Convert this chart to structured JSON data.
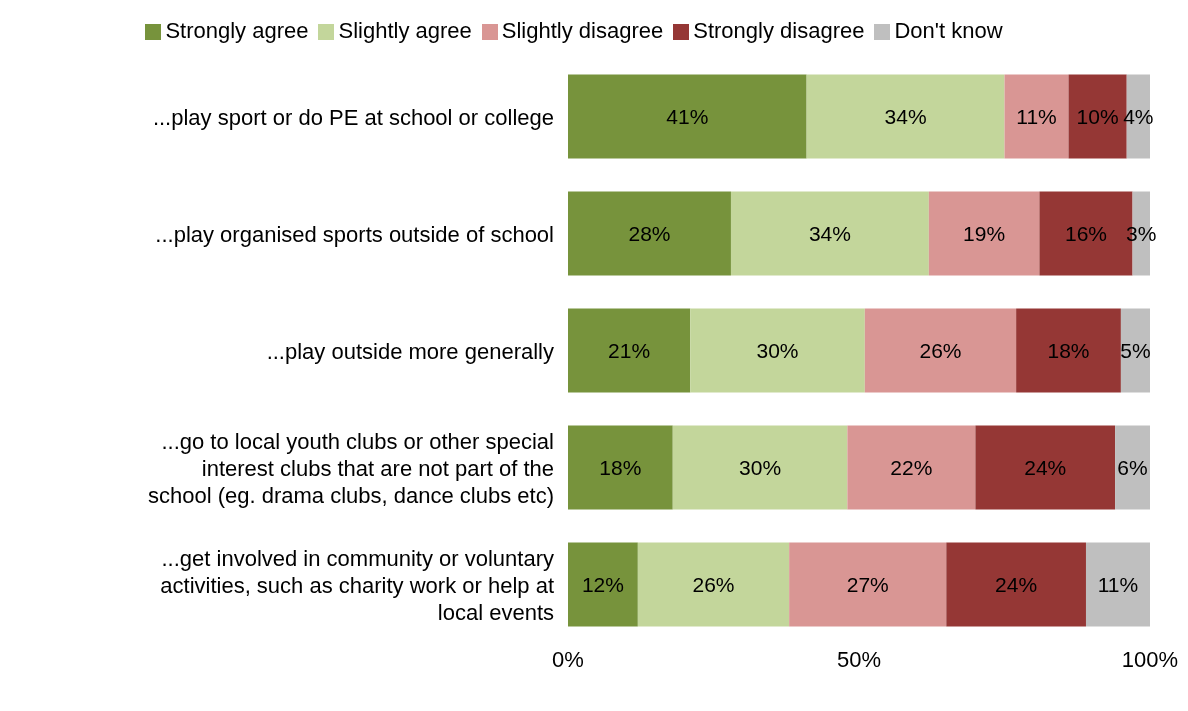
{
  "chart_data": {
    "type": "bar",
    "orientation": "horizontal",
    "stacked": true,
    "legend": "top",
    "grid": false,
    "categories": [
      "...play sport or do PE at school or college",
      "...play organised sports outside of school",
      "...play outside more generally",
      "...go to local youth clubs or other special interest clubs that are not part of the school (eg. drama clubs, dance clubs etc)",
      "...get involved  in community or voluntary activities, such as charity work or help at local events"
    ],
    "xlim": [
      0,
      100
    ],
    "xticks": [
      {
        "value": 0,
        "label": "0%"
      },
      {
        "value": 50,
        "label": "50%"
      },
      {
        "value": 100,
        "label": "100%"
      }
    ],
    "series": [
      {
        "name": "Strongly agree",
        "color": "#77933c",
        "values": [
          41,
          28,
          21,
          18,
          12
        ],
        "value_labels": [
          "41%",
          "28%",
          "21%",
          "18%",
          "12%"
        ]
      },
      {
        "name": "Slightly agree",
        "color": "#c3d69b",
        "values": [
          34,
          34,
          30,
          30,
          26
        ],
        "value_labels": [
          "34%",
          "34%",
          "30%",
          "30%",
          "26%"
        ]
      },
      {
        "name": "Slightly disagree",
        "color": "#d99694",
        "values": [
          11,
          19,
          26,
          22,
          27
        ],
        "value_labels": [
          "11%",
          "19%",
          "26%",
          "22%",
          "27%"
        ]
      },
      {
        "name": "Strongly disagree",
        "color": "#953735",
        "values": [
          10,
          16,
          18,
          24,
          24
        ],
        "value_labels": [
          "10%",
          "16%",
          "18%",
          "24%",
          "24%"
        ]
      },
      {
        "name": "Don't know",
        "color": "#bfbfbf",
        "values": [
          4,
          3,
          5,
          6,
          11
        ],
        "value_labels": [
          "4%",
          "3%",
          "5%",
          "6%",
          "11%"
        ]
      }
    ]
  }
}
